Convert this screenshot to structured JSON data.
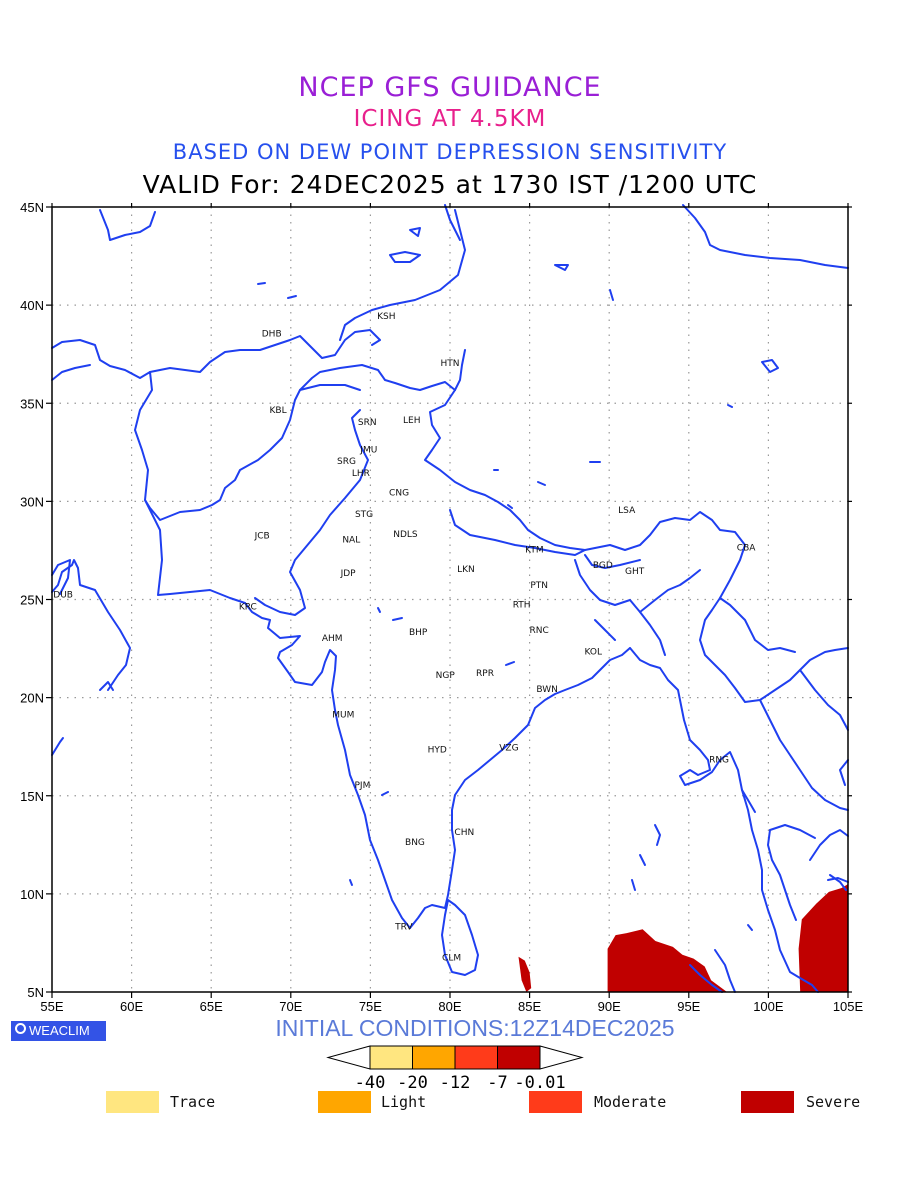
{
  "titles": {
    "line1": "NCEP GFS GUIDANCE",
    "line2": "ICING AT 4.5KM",
    "line3": "BASED ON DEW POINT DEPRESSION SENSITIVITY",
    "line4": "VALID For: 24DEC2025 at 1730 IST /1200 UTC"
  },
  "map": {
    "lon_range": [
      55,
      105
    ],
    "lat_range": [
      5,
      45
    ],
    "lon_ticks": [
      55,
      60,
      65,
      70,
      75,
      80,
      85,
      90,
      95,
      100,
      105
    ],
    "lat_ticks": [
      5,
      10,
      15,
      20,
      25,
      30,
      35,
      40,
      45
    ],
    "lon_tick_labels": [
      "55E",
      "60E",
      "65E",
      "70E",
      "75E",
      "80E",
      "85E",
      "90E",
      "95E",
      "100E",
      "105E"
    ],
    "lat_tick_labels": [
      "5N",
      "10N",
      "15N",
      "20N",
      "25N",
      "30N",
      "35N",
      "40N",
      "45N"
    ],
    "grid": "dotted",
    "coast_color": "#1f3ff0",
    "stations": [
      {
        "code": "KSH",
        "lon": 76.0,
        "lat": 39.5
      },
      {
        "code": "DHB",
        "lon": 68.8,
        "lat": 38.6
      },
      {
        "code": "HTN",
        "lon": 80.0,
        "lat": 37.1
      },
      {
        "code": "KBL",
        "lon": 69.2,
        "lat": 34.7
      },
      {
        "code": "SRN",
        "lon": 74.8,
        "lat": 34.1
      },
      {
        "code": "LEH",
        "lon": 77.6,
        "lat": 34.2
      },
      {
        "code": "JMU",
        "lon": 74.9,
        "lat": 32.7
      },
      {
        "code": "SRG",
        "lon": 73.5,
        "lat": 32.1
      },
      {
        "code": "LHR",
        "lon": 74.4,
        "lat": 31.5
      },
      {
        "code": "CNG",
        "lon": 76.8,
        "lat": 30.5
      },
      {
        "code": "STG",
        "lon": 74.6,
        "lat": 29.4
      },
      {
        "code": "LSA",
        "lon": 91.1,
        "lat": 29.6
      },
      {
        "code": "JCB",
        "lon": 68.2,
        "lat": 28.3
      },
      {
        "code": "NAL",
        "lon": 73.8,
        "lat": 28.1
      },
      {
        "code": "NDLS",
        "lon": 77.2,
        "lat": 28.4
      },
      {
        "code": "CBA",
        "lon": 98.6,
        "lat": 27.7
      },
      {
        "code": "KTM",
        "lon": 85.3,
        "lat": 27.6
      },
      {
        "code": "BGD",
        "lon": 89.6,
        "lat": 26.8
      },
      {
        "code": "GHT",
        "lon": 91.6,
        "lat": 26.5
      },
      {
        "code": "JDP",
        "lon": 73.6,
        "lat": 26.4
      },
      {
        "code": "LKN",
        "lon": 81.0,
        "lat": 26.6
      },
      {
        "code": "PTN",
        "lon": 85.6,
        "lat": 25.8
      },
      {
        "code": "DUB",
        "lon": 55.7,
        "lat": 25.3
      },
      {
        "code": "RTH",
        "lon": 84.5,
        "lat": 24.8
      },
      {
        "code": "KRC",
        "lon": 67.3,
        "lat": 24.7
      },
      {
        "code": "BHP",
        "lon": 78.0,
        "lat": 23.4
      },
      {
        "code": "RNC",
        "lon": 85.6,
        "lat": 23.5
      },
      {
        "code": "AHM",
        "lon": 72.6,
        "lat": 23.1
      },
      {
        "code": "KOL",
        "lon": 89.0,
        "lat": 22.4
      },
      {
        "code": "NGP",
        "lon": 79.7,
        "lat": 21.2
      },
      {
        "code": "RPR",
        "lon": 82.2,
        "lat": 21.3
      },
      {
        "code": "BWN",
        "lon": 86.1,
        "lat": 20.5
      },
      {
        "code": "MUM",
        "lon": 73.3,
        "lat": 19.2
      },
      {
        "code": "HYD",
        "lon": 79.2,
        "lat": 17.4
      },
      {
        "code": "VZG",
        "lon": 83.7,
        "lat": 17.5
      },
      {
        "code": "RNG",
        "lon": 96.9,
        "lat": 16.9
      },
      {
        "code": "PJM",
        "lon": 74.5,
        "lat": 15.6
      },
      {
        "code": "CHN",
        "lon": 80.9,
        "lat": 13.2
      },
      {
        "code": "BNG",
        "lon": 77.8,
        "lat": 12.7
      },
      {
        "code": "TRV",
        "lon": 77.1,
        "lat": 8.4
      },
      {
        "code": "CLM",
        "lon": 80.1,
        "lat": 6.8
      }
    ],
    "severe_icing_areas": [
      [
        [
          85.0,
          6.0
        ],
        [
          85.1,
          5.2
        ],
        [
          84.8,
          5.0
        ],
        [
          84.5,
          5.6
        ],
        [
          84.3,
          6.8
        ],
        [
          84.7,
          6.6
        ]
      ],
      [
        [
          89.9,
          5.0
        ],
        [
          89.9,
          7.2
        ],
        [
          90.4,
          7.9
        ],
        [
          91.1,
          8.0
        ],
        [
          92.1,
          8.2
        ],
        [
          92.9,
          7.6
        ],
        [
          94.0,
          7.3
        ],
        [
          94.6,
          6.9
        ],
        [
          95.3,
          6.7
        ],
        [
          96.0,
          6.3
        ],
        [
          96.4,
          5.6
        ],
        [
          97.4,
          5.0
        ]
      ],
      [
        [
          102.0,
          5.0
        ],
        [
          101.9,
          7.2
        ],
        [
          102.1,
          8.7
        ],
        [
          103.0,
          9.5
        ],
        [
          103.8,
          10.1
        ],
        [
          104.6,
          10.3
        ],
        [
          105.0,
          10.5
        ],
        [
          105.0,
          5.0
        ]
      ]
    ]
  },
  "footer": {
    "brand": "WEACLIM",
    "initial_conditions": "INITIAL CONDITIONS:12Z14DEC2025",
    "colorbar_labels": [
      "-40",
      "-20",
      "-12",
      "-7",
      "-0.01"
    ],
    "colorbar_colors": [
      "#ffe680",
      "#ffa600",
      "#ff3b1a",
      "#c00000"
    ],
    "legend": [
      {
        "label": "Trace",
        "color": "#ffe680"
      },
      {
        "label": "Light",
        "color": "#ffa600"
      },
      {
        "label": "Moderate",
        "color": "#ff3b1a"
      },
      {
        "label": "Severe",
        "color": "#c00000"
      }
    ]
  }
}
